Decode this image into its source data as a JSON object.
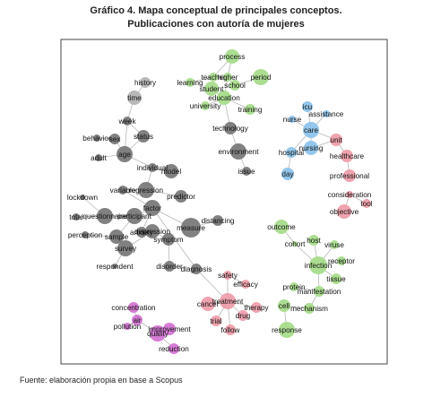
{
  "title": "Gráfico 4. Mapa conceptual de principales conceptos.",
  "subtitle": "Publicaciones con autoría de mujeres",
  "source": "Fuente: elaboración propia en base a Scopus",
  "colors": {
    "gray": "#7a7a7a",
    "green": "#a8dc8c",
    "blue": "#8ec4ec",
    "pink": "#ee9eaa",
    "magenta": "#d575d4",
    "edge": "#b8b8b8",
    "frame": "#444444"
  },
  "nodes": [
    {
      "id": "process",
      "label": "process",
      "cluster": "green"
    },
    {
      "id": "teacher",
      "label": "teacher",
      "cluster": "green"
    },
    {
      "id": "higher",
      "label": "higher",
      "cluster": "green"
    },
    {
      "id": "learning",
      "label": "learning",
      "cluster": "green"
    },
    {
      "id": "student",
      "label": "student",
      "cluster": "green"
    },
    {
      "id": "school",
      "label": "school",
      "cluster": "green"
    },
    {
      "id": "period",
      "label": "period",
      "cluster": "green"
    },
    {
      "id": "education",
      "label": "education",
      "cluster": "green"
    },
    {
      "id": "university",
      "label": "university",
      "cluster": "green"
    },
    {
      "id": "training",
      "label": "training",
      "cluster": "green"
    },
    {
      "id": "history",
      "label": "history",
      "cluster": "gray_light"
    },
    {
      "id": "time",
      "label": "time",
      "cluster": "gray_light"
    },
    {
      "id": "week",
      "label": "week",
      "cluster": "gray"
    },
    {
      "id": "technology",
      "label": "technology",
      "cluster": "gray"
    },
    {
      "id": "behavior",
      "label": "behavior",
      "cluster": "gray"
    },
    {
      "id": "sex",
      "label": "sex",
      "cluster": "gray"
    },
    {
      "id": "status",
      "label": "status",
      "cluster": "gray"
    },
    {
      "id": "environment",
      "label": "environment",
      "cluster": "gray"
    },
    {
      "id": "adult",
      "label": "adult",
      "cluster": "gray"
    },
    {
      "id": "age",
      "label": "age",
      "cluster": "gray"
    },
    {
      "id": "issue",
      "label": "issue",
      "cluster": "gray"
    },
    {
      "id": "individual",
      "label": "individual",
      "cluster": "gray"
    },
    {
      "id": "model",
      "label": "model",
      "cluster": "gray"
    },
    {
      "id": "variable",
      "label": "variable",
      "cluster": "gray"
    },
    {
      "id": "regression",
      "label": "regression",
      "cluster": "gray"
    },
    {
      "id": "predictor",
      "label": "predictor",
      "cluster": "gray"
    },
    {
      "id": "lockdown",
      "label": "lockdown",
      "cluster": "gray"
    },
    {
      "id": "factor",
      "label": "factor",
      "cluster": "gray"
    },
    {
      "id": "total",
      "label": "total",
      "cluster": "gray"
    },
    {
      "id": "questionnaire",
      "label": "questionnaire",
      "cluster": "gray"
    },
    {
      "id": "participant",
      "label": "participant",
      "cluster": "gray"
    },
    {
      "id": "distancing",
      "label": "distancing",
      "cluster": "gray"
    },
    {
      "id": "measure",
      "label": "measure",
      "cluster": "gray"
    },
    {
      "id": "anxiety",
      "label": "anxiety",
      "cluster": "gray"
    },
    {
      "id": "depression",
      "label": "depression",
      "cluster": "gray"
    },
    {
      "id": "perception",
      "label": "perception",
      "cluster": "gray"
    },
    {
      "id": "sample",
      "label": "sample",
      "cluster": "gray"
    },
    {
      "id": "symptom",
      "label": "symptom",
      "cluster": "gray"
    },
    {
      "id": "survey",
      "label": "survey",
      "cluster": "gray"
    },
    {
      "id": "respondent",
      "label": "respondent",
      "cluster": "gray"
    },
    {
      "id": "disorder",
      "label": "disorder",
      "cluster": "gray"
    },
    {
      "id": "diagnosis",
      "label": "diagnosis",
      "cluster": "gray"
    },
    {
      "id": "icu",
      "label": "icu",
      "cluster": "blue"
    },
    {
      "id": "nurse",
      "label": "nurse",
      "cluster": "blue"
    },
    {
      "id": "assistance",
      "label": "assistance",
      "cluster": "blue"
    },
    {
      "id": "care",
      "label": "care",
      "cluster": "blue"
    },
    {
      "id": "hospital",
      "label": "hospital",
      "cluster": "blue"
    },
    {
      "id": "nursing",
      "label": "nursing",
      "cluster": "blue"
    },
    {
      "id": "day",
      "label": "day",
      "cluster": "blue"
    },
    {
      "id": "unit",
      "label": "unit",
      "cluster": "pink"
    },
    {
      "id": "healthcare",
      "label": "healthcare",
      "cluster": "pink"
    },
    {
      "id": "professional",
      "label": "professional",
      "cluster": "pink"
    },
    {
      "id": "consideration",
      "label": "consideration",
      "cluster": "pink"
    },
    {
      "id": "tool",
      "label": "tool",
      "cluster": "pink"
    },
    {
      "id": "objective",
      "label": "objective",
      "cluster": "pink"
    },
    {
      "id": "outcome",
      "label": "outcome",
      "cluster": "green"
    },
    {
      "id": "cohort",
      "label": "cohort",
      "cluster": "green"
    },
    {
      "id": "host",
      "label": "host",
      "cluster": "green"
    },
    {
      "id": "viruse",
      "label": "viruse",
      "cluster": "green"
    },
    {
      "id": "infection",
      "label": "infection",
      "cluster": "green"
    },
    {
      "id": "receptor",
      "label": "receptor",
      "cluster": "green"
    },
    {
      "id": "tissue",
      "label": "tissue",
      "cluster": "green"
    },
    {
      "id": "protein",
      "label": "protein",
      "cluster": "green"
    },
    {
      "id": "manifestation",
      "label": "manifestation",
      "cluster": "green"
    },
    {
      "id": "cell",
      "label": "cell",
      "cluster": "green"
    },
    {
      "id": "mechanism",
      "label": "mechanism",
      "cluster": "green"
    },
    {
      "id": "response",
      "label": "response",
      "cluster": "green"
    },
    {
      "id": "safety",
      "label": "safety",
      "cluster": "pink"
    },
    {
      "id": "efficacy",
      "label": "efficacy",
      "cluster": "pink"
    },
    {
      "id": "cancer",
      "label": "cancer",
      "cluster": "pink"
    },
    {
      "id": "treatment",
      "label": "treatment",
      "cluster": "pink"
    },
    {
      "id": "therapy",
      "label": "therapy",
      "cluster": "pink"
    },
    {
      "id": "drug",
      "label": "drug",
      "cluster": "pink"
    },
    {
      "id": "trial",
      "label": "trial",
      "cluster": "pink"
    },
    {
      "id": "follow",
      "label": "follow",
      "cluster": "pink"
    },
    {
      "id": "concentration",
      "label": "concentration",
      "cluster": "magenta"
    },
    {
      "id": "pollution",
      "label": "pollution",
      "cluster": "magenta"
    },
    {
      "id": "air",
      "label": "air",
      "cluster": "magenta"
    },
    {
      "id": "improvement",
      "label": "improvement",
      "cluster": "magenta"
    },
    {
      "id": "quality",
      "label": "quality",
      "cluster": "magenta"
    },
    {
      "id": "reduction",
      "label": "reduction",
      "cluster": "magenta"
    }
  ],
  "edges": [
    [
      "process",
      "teacher"
    ],
    [
      "process",
      "higher"
    ],
    [
      "teacher",
      "student"
    ],
    [
      "higher",
      "school"
    ],
    [
      "teacher",
      "learning"
    ],
    [
      "student",
      "education"
    ],
    [
      "higher",
      "education"
    ],
    [
      "school",
      "period"
    ],
    [
      "education",
      "university"
    ],
    [
      "education",
      "training"
    ],
    [
      "education",
      "technology"
    ],
    [
      "history",
      "time"
    ],
    [
      "time",
      "week"
    ],
    [
      "week",
      "status"
    ],
    [
      "status",
      "age"
    ],
    [
      "week",
      "age"
    ],
    [
      "behavior",
      "sex"
    ],
    [
      "sex",
      "age"
    ],
    [
      "age",
      "adult"
    ],
    [
      "age",
      "individual"
    ],
    [
      "technology",
      "environment"
    ],
    [
      "environment",
      "issue"
    ],
    [
      "individual",
      "model"
    ],
    [
      "individual",
      "regression"
    ],
    [
      "variable",
      "regression"
    ],
    [
      "regression",
      "predictor"
    ],
    [
      "variable",
      "factor"
    ],
    [
      "lockdown",
      "questionnaire"
    ],
    [
      "questionnaire",
      "total"
    ],
    [
      "questionnaire",
      "participant"
    ],
    [
      "participant",
      "factor"
    ],
    [
      "factor",
      "measure"
    ],
    [
      "factor",
      "anxiety"
    ],
    [
      "anxiety",
      "depression"
    ],
    [
      "depression",
      "symptom"
    ],
    [
      "measure",
      "distancing"
    ],
    [
      "participant",
      "sample"
    ],
    [
      "sample",
      "perception"
    ],
    [
      "sample",
      "survey"
    ],
    [
      "survey",
      "respondent"
    ],
    [
      "symptom",
      "disorder"
    ],
    [
      "disorder",
      "diagnosis"
    ],
    [
      "depression",
      "survey"
    ],
    [
      "factor",
      "diagnosis"
    ],
    [
      "icu",
      "care"
    ],
    [
      "nurse",
      "care"
    ],
    [
      "assistance",
      "care"
    ],
    [
      "care",
      "hospital"
    ],
    [
      "care",
      "nursing"
    ],
    [
      "hospital",
      "day"
    ],
    [
      "nursing",
      "unit"
    ],
    [
      "care",
      "unit"
    ],
    [
      "unit",
      "healthcare"
    ],
    [
      "healthcare",
      "professional"
    ],
    [
      "consideration",
      "objective"
    ],
    [
      "consideration",
      "tool"
    ],
    [
      "outcome",
      "cohort"
    ],
    [
      "cohort",
      "infection"
    ],
    [
      "host",
      "infection"
    ],
    [
      "viruse",
      "infection"
    ],
    [
      "infection",
      "receptor"
    ],
    [
      "infection",
      "tissue"
    ],
    [
      "infection",
      "manifestation"
    ],
    [
      "protein",
      "manifestation"
    ],
    [
      "cell",
      "mechanism"
    ],
    [
      "manifestation",
      "mechanism"
    ],
    [
      "cell",
      "response"
    ],
    [
      "safety",
      "efficacy"
    ],
    [
      "safety",
      "treatment"
    ],
    [
      "cancer",
      "treatment"
    ],
    [
      "treatment",
      "therapy"
    ],
    [
      "treatment",
      "drug"
    ],
    [
      "treatment",
      "trial"
    ],
    [
      "treatment",
      "follow"
    ],
    [
      "diagnosis",
      "treatment"
    ],
    [
      "concentration",
      "air"
    ],
    [
      "pollution",
      "air"
    ],
    [
      "air",
      "quality"
    ],
    [
      "improvement",
      "quality"
    ],
    [
      "quality",
      "reduction"
    ]
  ]
}
